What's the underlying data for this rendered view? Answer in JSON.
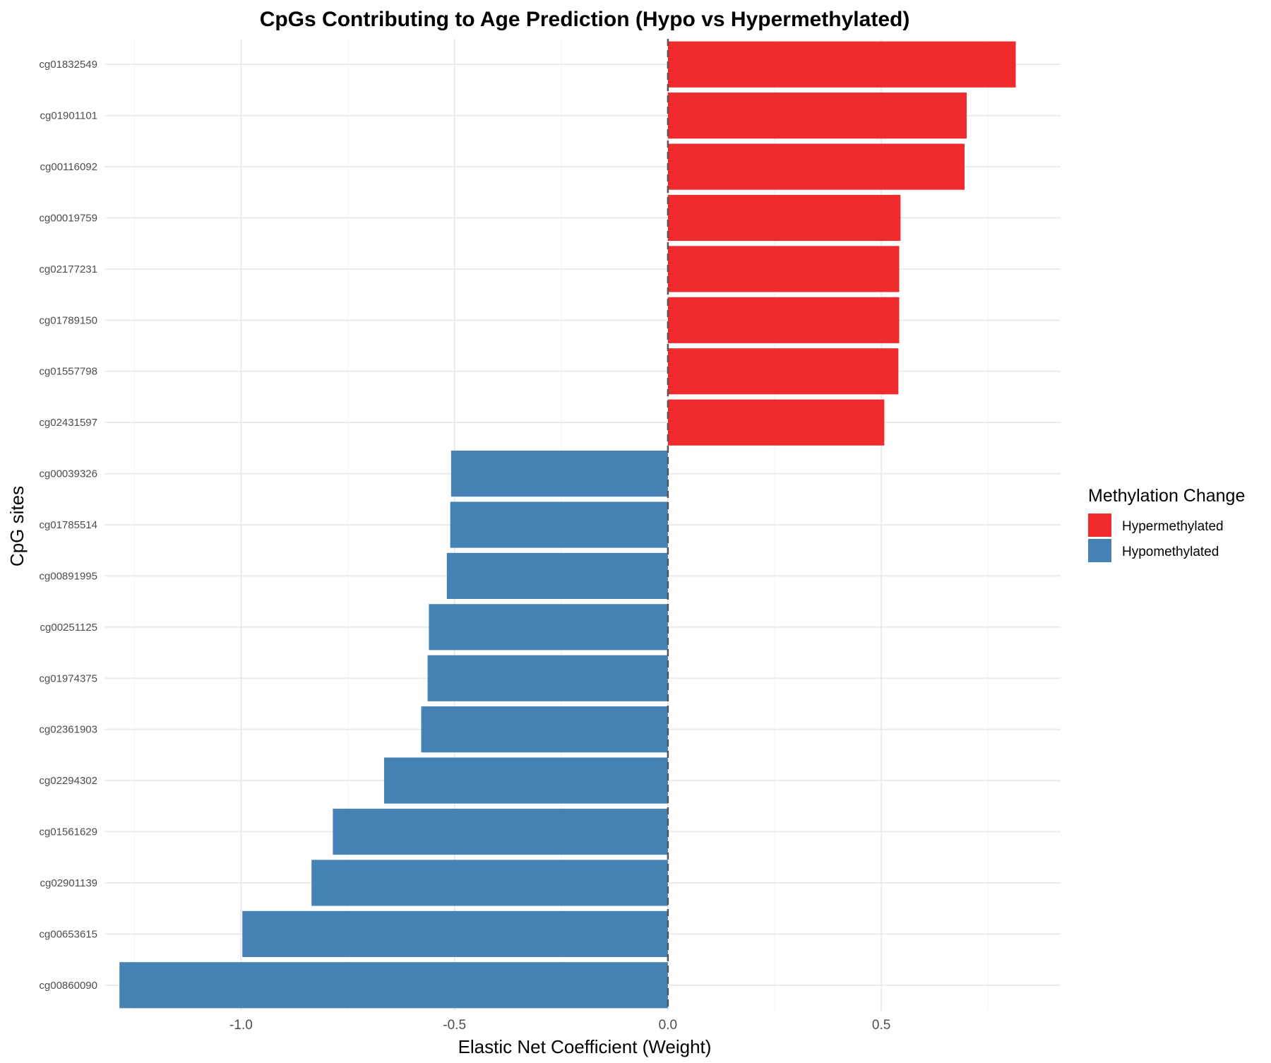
{
  "chart_data": {
    "type": "bar",
    "orientation": "horizontal",
    "title": "CpGs Contributing to Age Prediction (Hypo vs Hypermethylated)",
    "xlabel": "Elastic Net Coefficient (Weight)",
    "ylabel": "CpG sites",
    "xlim": [
      -1.32,
      0.92
    ],
    "xticks": [
      -1.0,
      -0.5,
      0.0,
      0.5
    ],
    "xtick_labels": [
      "-1.0",
      "-0.5",
      "0.0",
      "0.5"
    ],
    "grid": true,
    "reference_line": {
      "x": 0,
      "style": "dashed"
    },
    "legend": {
      "title": "Methylation Change",
      "placement": "right",
      "entries": [
        {
          "label": "Hypermethylated",
          "color": "#ef2b2d"
        },
        {
          "label": "Hypomethylated",
          "color": "#4682b4"
        }
      ]
    },
    "categories": [
      "cg01832549",
      "cg01901101",
      "cg00116092",
      "cg00019759",
      "cg02177231",
      "cg01789150",
      "cg01557798",
      "cg02431597",
      "cg00039326",
      "cg01785514",
      "cg00891995",
      "cg00251125",
      "cg01974375",
      "cg02361903",
      "cg02294302",
      "cg01561629",
      "cg02901139",
      "cg00653615",
      "cg00860090"
    ],
    "values": [
      0.815,
      0.7,
      0.695,
      0.545,
      0.542,
      0.542,
      0.54,
      0.507,
      -0.508,
      -0.51,
      -0.518,
      -0.56,
      -0.563,
      -0.578,
      -0.665,
      -0.785,
      -0.835,
      -0.997,
      -1.285
    ],
    "groups": [
      "Hypermethylated",
      "Hypermethylated",
      "Hypermethylated",
      "Hypermethylated",
      "Hypermethylated",
      "Hypermethylated",
      "Hypermethylated",
      "Hypermethylated",
      "Hypomethylated",
      "Hypomethylated",
      "Hypomethylated",
      "Hypomethylated",
      "Hypomethylated",
      "Hypomethylated",
      "Hypomethylated",
      "Hypomethylated",
      "Hypomethylated",
      "Hypomethylated",
      "Hypomethylated"
    ]
  }
}
